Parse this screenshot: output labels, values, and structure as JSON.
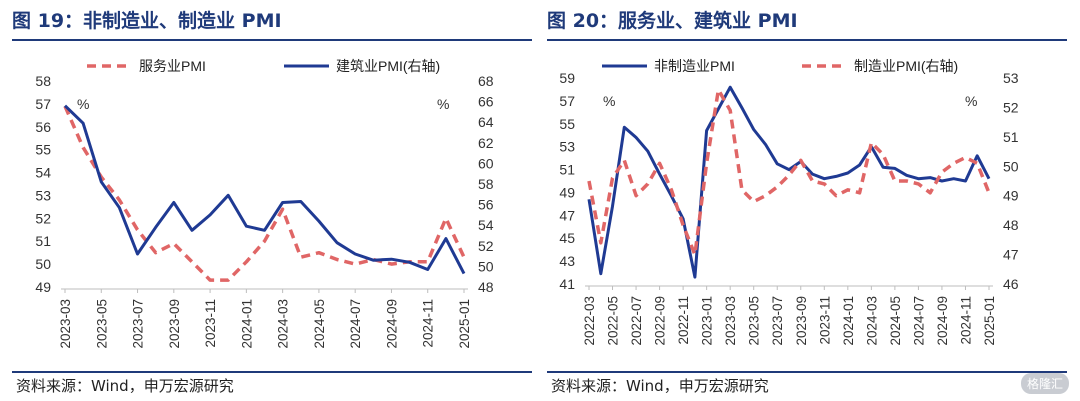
{
  "footer_source": "资料来源：Wind，申万宏源研究",
  "watermark": "格隆汇",
  "charts": [
    {
      "title": "图 19：非制造业、制造业 PMI",
      "unit_left": "%",
      "unit_right": "%"
    },
    {
      "title": "图 20：服务业、建筑业 PMI",
      "unit_left": "%",
      "unit_right": "%"
    }
  ],
  "chart_data": [
    {
      "type": "line",
      "x": [
        "2023-03",
        "2023-04",
        "2023-05",
        "2023-06",
        "2023-07",
        "2023-08",
        "2023-09",
        "2023-10",
        "2023-11",
        "2023-12",
        "2024-01",
        "2024-02",
        "2024-03",
        "2024-04",
        "2024-05",
        "2024-06",
        "2024-07",
        "2024-08",
        "2024-09",
        "2024-10",
        "2024-11",
        "2024-12",
        "2025-01"
      ],
      "x_ticks": [
        "2023-03",
        "2023-05",
        "2023-07",
        "2023-09",
        "2023-11",
        "2024-01",
        "2024-03",
        "2024-05",
        "2024-07",
        "2024-09",
        "2024-11",
        "2025-01"
      ],
      "y_left_ticks": [
        49,
        50,
        51,
        52,
        53,
        54,
        55,
        56,
        57,
        58
      ],
      "y_right_ticks": [
        48,
        50,
        52,
        54,
        56,
        58,
        60,
        62,
        64,
        66,
        68
      ],
      "ylim_left": [
        49,
        58
      ],
      "ylim_right": [
        48,
        68
      ],
      "legend_position": "top",
      "series": [
        {
          "name": "服务业PMI",
          "axis": "left",
          "style": "dashed",
          "color": "#e06666",
          "values": [
            56.9,
            55.1,
            53.8,
            52.8,
            51.5,
            50.5,
            50.9,
            50.1,
            49.3,
            49.3,
            50.1,
            51.0,
            52.4,
            50.3,
            50.5,
            50.2,
            50.0,
            50.2,
            50.0,
            50.1,
            50.1,
            52.0,
            50.3
          ]
        },
        {
          "name": "建筑业PMI(右轴)",
          "axis": "right",
          "style": "solid",
          "color": "#1f3a93",
          "values": [
            65.6,
            63.9,
            58.2,
            55.7,
            51.2,
            53.8,
            56.2,
            53.5,
            55.0,
            56.9,
            53.9,
            53.5,
            56.2,
            56.3,
            54.4,
            52.3,
            51.2,
            50.6,
            50.7,
            50.4,
            49.7,
            52.7,
            49.3
          ]
        }
      ]
    },
    {
      "type": "line",
      "x": [
        "2022-03",
        "2022-04",
        "2022-05",
        "2022-06",
        "2022-07",
        "2022-08",
        "2022-09",
        "2022-10",
        "2022-11",
        "2022-12",
        "2023-01",
        "2023-02",
        "2023-03",
        "2023-04",
        "2023-05",
        "2023-06",
        "2023-07",
        "2023-08",
        "2023-09",
        "2023-10",
        "2023-11",
        "2023-12",
        "2024-01",
        "2024-02",
        "2024-03",
        "2024-04",
        "2024-05",
        "2024-06",
        "2024-07",
        "2024-08",
        "2024-09",
        "2024-10",
        "2024-11",
        "2024-12",
        "2025-01"
      ],
      "x_ticks": [
        "2022-03",
        "2022-05",
        "2022-07",
        "2022-09",
        "2022-11",
        "2023-01",
        "2023-03",
        "2023-05",
        "2023-07",
        "2023-09",
        "2023-11",
        "2024-01",
        "2024-03",
        "2024-05",
        "2024-07",
        "2024-09",
        "2024-11",
        "2025-01"
      ],
      "y_left_ticks": [
        41,
        43,
        45,
        47,
        49,
        51,
        53,
        55,
        57,
        59
      ],
      "y_right_ticks": [
        46,
        47,
        48,
        49,
        50,
        51,
        52,
        53
      ],
      "ylim_left": [
        41,
        59
      ],
      "ylim_right": [
        46,
        53
      ],
      "legend_position": "top",
      "series": [
        {
          "name": "非制造业PMI",
          "axis": "left",
          "style": "solid",
          "color": "#1f3a93",
          "values": [
            48.4,
            41.9,
            47.8,
            54.7,
            53.8,
            52.6,
            50.6,
            48.7,
            46.7,
            41.6,
            54.4,
            56.3,
            58.2,
            56.4,
            54.5,
            53.2,
            51.5,
            51.0,
            51.7,
            50.6,
            50.2,
            50.4,
            50.7,
            51.4,
            53.0,
            51.2,
            51.1,
            50.5,
            50.2,
            50.3,
            50.0,
            50.2,
            50.0,
            52.2,
            50.2
          ]
        },
        {
          "name": "制造业PMI(右轴)",
          "axis": "right",
          "style": "dashed",
          "color": "#e06666",
          "values": [
            49.5,
            47.4,
            49.6,
            50.2,
            49.0,
            49.4,
            50.1,
            49.2,
            48.0,
            47.0,
            50.1,
            52.6,
            51.9,
            49.2,
            48.8,
            49.0,
            49.3,
            49.7,
            50.2,
            49.5,
            49.4,
            49.0,
            49.2,
            49.1,
            50.8,
            50.4,
            49.5,
            49.5,
            49.4,
            49.1,
            49.8,
            50.1,
            50.3,
            50.1,
            49.1
          ]
        }
      ]
    }
  ]
}
